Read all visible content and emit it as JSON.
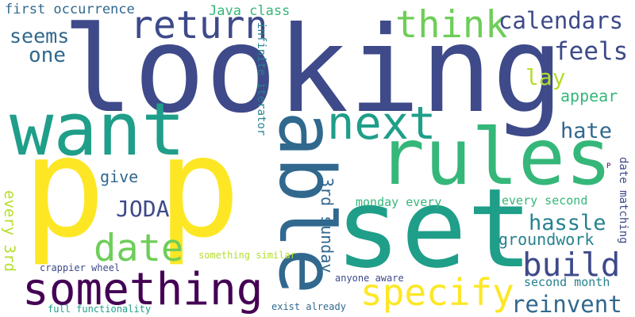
{
  "title": "Word cloud",
  "palette": {
    "dark_purple": "#440154",
    "indigo": "#3e4a89",
    "blue": "#31688e",
    "teal": "#26828e",
    "green_teal": "#1f9e89",
    "green": "#35b779",
    "light_green": "#6ece58",
    "yellow_green": "#b5de2b",
    "yellow": "#fde725"
  },
  "words": [
    {
      "text": "looking",
      "color": "#3e4a89"
    },
    {
      "text": "p",
      "color": "#fde725"
    },
    {
      "text": "p",
      "color": "#fde725"
    },
    {
      "text": "set",
      "color": "#1f9e89"
    },
    {
      "text": "rules",
      "color": "#35b779"
    },
    {
      "text": "want",
      "color": "#1f9e89"
    },
    {
      "text": "able",
      "color": "#31688e"
    },
    {
      "text": "something",
      "color": "#440154"
    },
    {
      "text": "next",
      "color": "#1f9e89"
    },
    {
      "text": "think",
      "color": "#6ece58"
    },
    {
      "text": "return",
      "color": "#3e4a89"
    },
    {
      "text": "specify",
      "color": "#fde725"
    },
    {
      "text": "build",
      "color": "#3e4a89"
    },
    {
      "text": "date",
      "color": "#6ece58"
    },
    {
      "text": "calendars",
      "color": "#3e4a89"
    },
    {
      "text": "reinvent",
      "color": "#31688e"
    },
    {
      "text": "feels",
      "color": "#3e4a89"
    },
    {
      "text": "seems",
      "color": "#31688e"
    },
    {
      "text": "one",
      "color": "#31688e"
    },
    {
      "text": "JODA",
      "color": "#3e4a89"
    },
    {
      "text": "hate",
      "color": "#31688e"
    },
    {
      "text": "hassle",
      "color": "#26828e"
    },
    {
      "text": "lay",
      "color": "#b5de2b"
    },
    {
      "text": "appear",
      "color": "#35b779"
    },
    {
      "text": "groundwork",
      "color": "#26828e"
    },
    {
      "text": "give",
      "color": "#31688e"
    },
    {
      "text": "first occurrence",
      "color": "#31688e"
    },
    {
      "text": "Java class",
      "color": "#35b779"
    },
    {
      "text": "every 3rd",
      "color": "#b5de2b"
    },
    {
      "text": "3rd sunday",
      "color": "#31688e"
    },
    {
      "text": "monday every",
      "color": "#35b779"
    },
    {
      "text": "every second",
      "color": "#35b779"
    },
    {
      "text": "second month",
      "color": "#26828e"
    },
    {
      "text": "infinite iterator",
      "color": "#26828e"
    },
    {
      "text": "date matching",
      "color": "#3e4a89"
    },
    {
      "text": "crappier wheel",
      "color": "#3e4a89"
    },
    {
      "text": "something similar",
      "color": "#b5de2b"
    },
    {
      "text": "anyone aware",
      "color": "#3e4a89"
    },
    {
      "text": "full functionality",
      "color": "#1f9e89"
    },
    {
      "text": "exist already",
      "color": "#31688e"
    },
    {
      "text": "P",
      "color": "#440154"
    }
  ]
}
